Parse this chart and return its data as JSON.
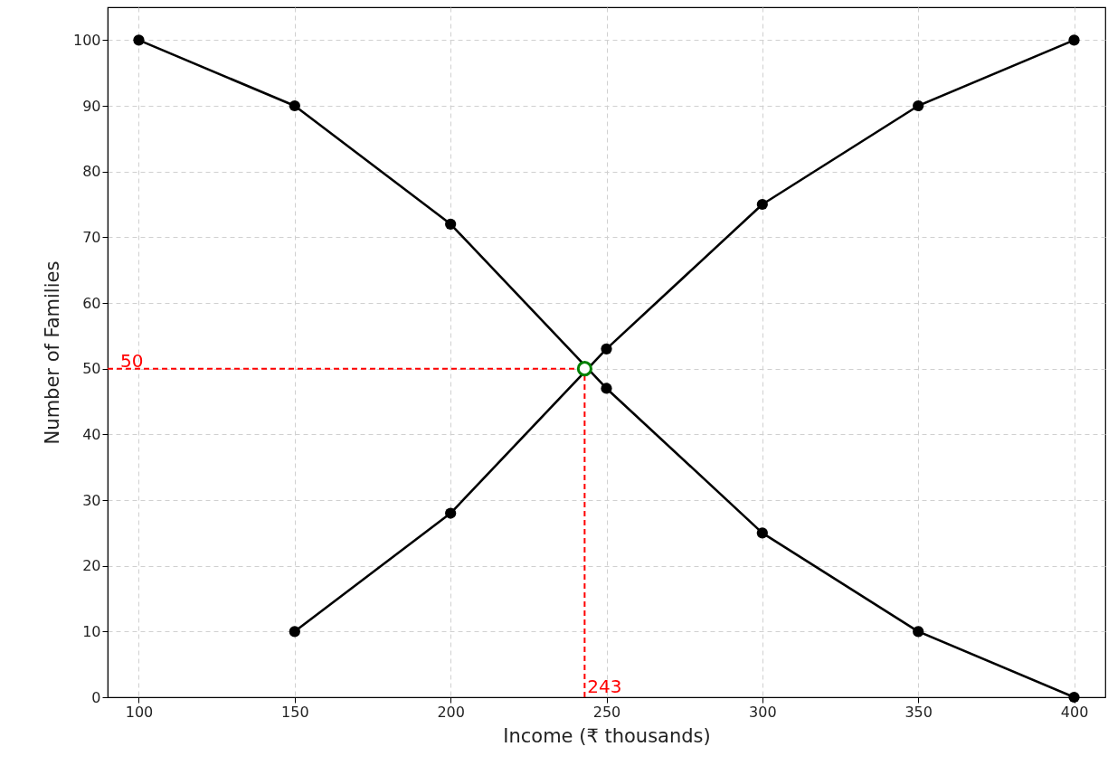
{
  "chart_data": {
    "type": "line",
    "xlabel": "Income (₹ thousands)",
    "ylabel": "Number of Families",
    "xlim": [
      90,
      410
    ],
    "ylim": [
      0,
      105
    ],
    "xticks": [
      100,
      150,
      200,
      250,
      300,
      350,
      400
    ],
    "yticks": [
      0,
      10,
      20,
      30,
      40,
      50,
      60,
      70,
      80,
      90,
      100
    ],
    "grid": true,
    "marker": "circle",
    "line_style": "solid",
    "series": [
      {
        "color": "#000000",
        "x": [
          100,
          150,
          200,
          250,
          300,
          350,
          400
        ],
        "values": [
          100,
          90,
          72,
          47,
          25,
          10,
          0
        ]
      },
      {
        "color": "#000000",
        "x": [
          150,
          200,
          250,
          300,
          350,
          400
        ],
        "values": [
          10,
          28,
          53,
          75,
          90,
          100
        ]
      },
      {
        "type": "scatter",
        "color": "#008000",
        "x": [
          243
        ],
        "values": [
          50
        ]
      }
    ],
    "ref_lines": [
      {
        "axis": "y",
        "value": 50,
        "label": "50",
        "color": "#ff0000",
        "line_style": "dashed"
      },
      {
        "axis": "x",
        "value": 243,
        "label": "243",
        "color": "#ff0000",
        "line_style": "dashed"
      }
    ]
  }
}
